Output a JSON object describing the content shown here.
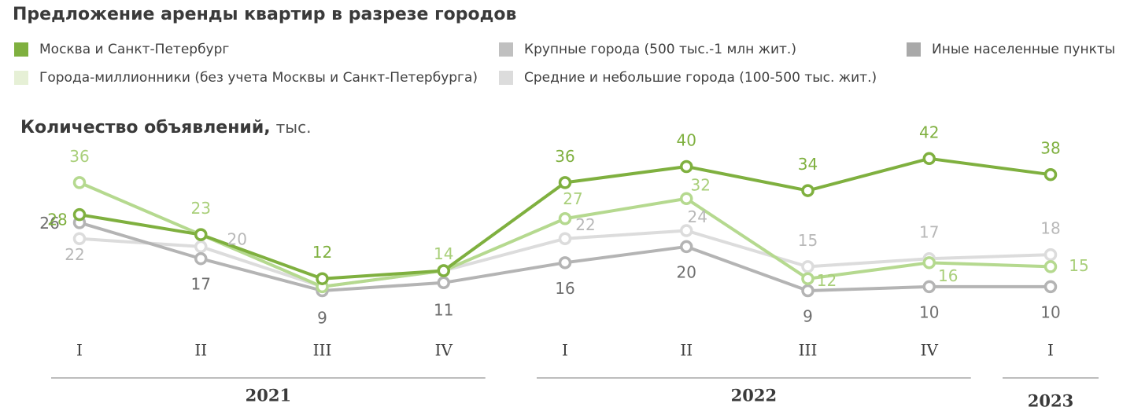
{
  "title": "Предложение аренды квартир в разрезе городов",
  "legend": [
    {
      "label": "Москва и Санкт-Петербург",
      "color": "#7fb03f"
    },
    {
      "label": "Крупные города (500 тыс.-1 млн жит.)",
      "color": "#c0c0c0"
    },
    {
      "label": "Иные населенные пункты",
      "color": "#a9a9a9"
    },
    {
      "label": "Города-миллионники (без учета Москвы и Санкт-Петербурга)",
      "color": "#e6f0d6"
    },
    {
      "label": "Средние и небольшие города (100-500 тыс. жит.)",
      "color": "#dcdcdc"
    }
  ],
  "subtitle": {
    "bold": "Количество объявлений,",
    "unit": "тыс."
  },
  "chart_data": {
    "type": "line",
    "categories": [
      "I",
      "II",
      "III",
      "IV",
      "I",
      "II",
      "III",
      "IV",
      "I"
    ],
    "years": [
      {
        "label": "2021",
        "from": 0,
        "to": 3
      },
      {
        "label": "2022",
        "from": 4,
        "to": 7
      },
      {
        "label": "2023",
        "from": 8,
        "to": 8
      }
    ],
    "series": [
      {
        "name": "Средние и небольшие города (100-500 тыс. жит.)",
        "color": "#dcdcdc",
        "label_color": "#b8b8b8",
        "values": [
          22,
          20,
          10,
          14,
          22,
          24,
          15,
          17,
          18
        ],
        "labels": [
          22,
          20,
          null,
          null,
          22,
          24,
          15,
          17,
          18
        ]
      },
      {
        "name": "Крупные города (500 тыс.-1 млн жит.)",
        "color": "#b4b4b4",
        "label_color": "#6e6e6e",
        "values": [
          26,
          17,
          9,
          11,
          16,
          20,
          9,
          10,
          10
        ],
        "labels": [
          26,
          17,
          9,
          11,
          16,
          20,
          9,
          10,
          10
        ]
      },
      {
        "name": "Города-миллионники (без учета Москвы и Санкт-Петербурга)",
        "color": "#b5d98f",
        "label_color": "#a9cf7a",
        "values": [
          36,
          23,
          10,
          14,
          27,
          32,
          12,
          16,
          15
        ],
        "labels": [
          36,
          23,
          null,
          14,
          27,
          32,
          12,
          16,
          15
        ]
      },
      {
        "name": "Москва и Санкт-Петербург",
        "color": "#7fb03f",
        "label_color": "#7fb03f",
        "values": [
          28,
          23,
          12,
          14,
          36,
          40,
          34,
          42,
          38
        ],
        "labels": [
          28,
          null,
          12,
          null,
          36,
          40,
          34,
          42,
          38
        ]
      }
    ],
    "ylim": [
      0,
      50
    ]
  }
}
